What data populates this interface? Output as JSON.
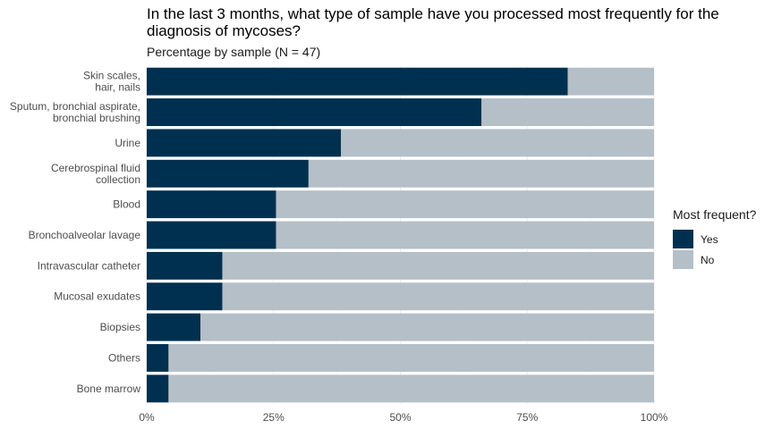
{
  "chart_data": {
    "type": "bar",
    "orientation": "horizontal",
    "stacked": true,
    "title": "In the last 3 months, what type of sample have you processed most frequently for the diagnosis of mycoses?",
    "subtitle": "Percentage by sample (N = 47)",
    "categories": [
      "Skin scales,\nhair, nails",
      "Sputum, bronchial aspirate,\nbronchial brushing",
      "Urine",
      "Cerebrospinal fluid\ncollection",
      "Blood",
      "Bronchoalveolar lavage",
      "Intravascular catheter",
      "Mucosal exudates",
      "Biopsies",
      "Others",
      "Bone marrow"
    ],
    "series": [
      {
        "name": "Yes",
        "color": "#00304f",
        "values": [
          83.0,
          66.0,
          38.3,
          31.9,
          25.5,
          25.5,
          14.9,
          14.9,
          10.6,
          4.3,
          4.3
        ]
      },
      {
        "name": "No",
        "color": "#b4bfc7",
        "values": [
          17.0,
          34.0,
          61.7,
          68.1,
          74.5,
          74.5,
          85.1,
          85.1,
          89.4,
          95.7,
          95.7
        ]
      }
    ],
    "xlim": [
      0,
      100
    ],
    "xticks": [
      "0%",
      "25%",
      "50%",
      "75%",
      "100%"
    ],
    "xtick_values": [
      0,
      25,
      50,
      75,
      100
    ],
    "grid": true,
    "legend": {
      "title": "Most frequent?",
      "placement": "right"
    }
  }
}
